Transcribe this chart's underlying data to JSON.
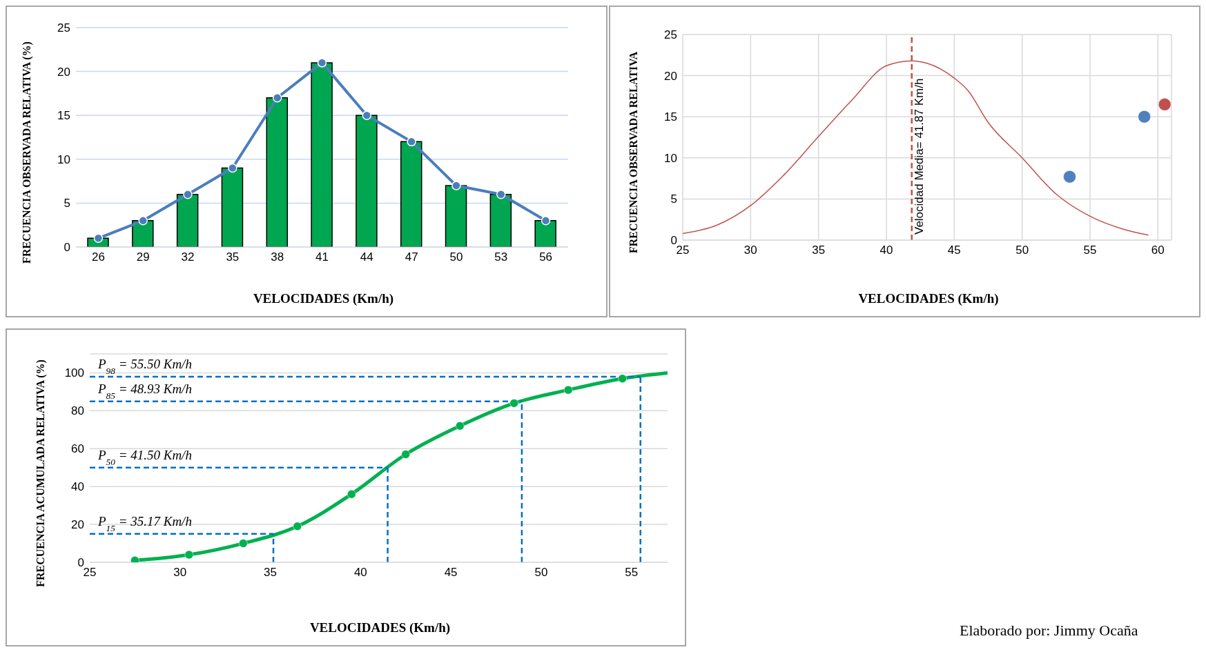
{
  "chart_data": [
    {
      "type": "bar",
      "xlabel": "VELOCIDADES (Km/h)",
      "ylabel": "FRECUENCIA OBSERVADA RELATIVA (%)",
      "categories": [
        "26",
        "29",
        "32",
        "35",
        "38",
        "41",
        "44",
        "47",
        "50",
        "53",
        "56"
      ],
      "series": [
        {
          "color": "#00a650",
          "values": [
            1,
            3,
            6,
            9,
            17,
            21,
            15,
            12,
            7,
            6,
            3
          ]
        },
        {
          "type": "line",
          "color": "#4a7ebb",
          "marker": "circle",
          "values": [
            1,
            3,
            6,
            9,
            17,
            21,
            15,
            12,
            7,
            6,
            3
          ]
        }
      ],
      "ylim": [
        0,
        25
      ],
      "yticks": [
        0,
        5,
        10,
        15,
        20,
        25
      ],
      "grid": "y"
    },
    {
      "type": "scatter",
      "xlabel": "VELOCIDADES (Km/h)",
      "ylabel": "FRECUENCIA OBSERVADA RELATIVA",
      "xlim": [
        25,
        61
      ],
      "xticks": [
        25,
        30,
        35,
        40,
        45,
        50,
        55,
        60
      ],
      "ylim": [
        0,
        25
      ],
      "yticks": [
        0,
        5,
        10,
        15,
        20,
        25
      ],
      "grid": true,
      "series": [
        {
          "type": "line",
          "color": "#c0504d",
          "marker": "none",
          "x": [
            25,
            27.5,
            30,
            32.5,
            35,
            37.5,
            40,
            41.87,
            43,
            45,
            46,
            47.5,
            50,
            52.5,
            55,
            57.5,
            59.3
          ],
          "values": [
            0.8,
            1.8,
            4.2,
            8,
            12.6,
            17.1,
            21.2,
            21.8,
            21.5,
            19.7,
            18.2,
            14.3,
            10,
            5.6,
            2.9,
            1.3,
            0.6
          ]
        },
        {
          "color": "#4f81bd",
          "marker": "circle",
          "x": [
            53.5,
            59
          ],
          "values": [
            7.7,
            15
          ]
        },
        {
          "color": "#c0504d",
          "marker": "circle",
          "x": [
            60.5
          ],
          "values": [
            16.5
          ]
        }
      ],
      "ref_lines": [
        {
          "axis": "x",
          "value": 41.87,
          "label": "Velocidad Media= 41.87 Km/h",
          "color": "#c0504d",
          "line_style": "dashed"
        }
      ]
    },
    {
      "type": "line",
      "xlabel": "VELOCIDADES (Km/h)",
      "ylabel": "FRECUENCIA ACUMULADA RELATIVA (%)",
      "xlim": [
        25,
        57
      ],
      "xticks": [
        25,
        30,
        35,
        40,
        45,
        50,
        55
      ],
      "ylim": [
        0,
        110
      ],
      "yticks": [
        0,
        20,
        40,
        60,
        80,
        100
      ],
      "grid": "y",
      "series": [
        {
          "type": "line",
          "color": "#00b050",
          "marker": "none",
          "x": [
            27.5,
            30.5,
            33.5,
            36.5,
            39.5,
            42.5,
            45.5,
            48.5,
            51.5,
            54.5,
            57
          ],
          "values": [
            1,
            4,
            10,
            19,
            36,
            57,
            72,
            84,
            91,
            97,
            100
          ]
        },
        {
          "type": "scatter",
          "color": "#00b050",
          "marker": "circle",
          "x": [
            27.5,
            30.5,
            33.5,
            36.5,
            39.5,
            42.5,
            45.5,
            48.5,
            51.5,
            54.5
          ],
          "values": [
            1,
            4,
            10,
            19,
            36,
            57,
            72,
            84,
            91,
            97
          ]
        }
      ],
      "ref_lines": [
        {
          "axis": "y",
          "value": 15,
          "label": "P$_{15}$ = 35.17 Km/h",
          "color": "#0070c0",
          "line_style": "dashed"
        },
        {
          "axis": "y",
          "value": 50,
          "label": "P$_{50}$ = 41.50 Km/h",
          "color": "#0070c0",
          "line_style": "dashed"
        },
        {
          "axis": "y",
          "value": 85,
          "label": "P$_{85}$ = 48.93 Km/h",
          "color": "#0070c0",
          "line_style": "dashed"
        },
        {
          "axis": "y",
          "value": 98,
          "label": "P$_{98}$ = 55.50 Km/h",
          "color": "#0070c0",
          "line_style": "dashed"
        },
        {
          "axis": "x",
          "value": 35.17,
          "color": "#0070c0",
          "line_style": "dashed"
        },
        {
          "axis": "x",
          "value": 41.5,
          "color": "#0070c0",
          "line_style": "dashed"
        },
        {
          "axis": "x",
          "value": 48.93,
          "color": "#0070c0",
          "line_style": "dashed"
        },
        {
          "axis": "x",
          "value": 55.5,
          "color": "#0070c0",
          "line_style": "dashed"
        }
      ],
      "annotations": [
        "Elaborado por: Jimmy Ocaña"
      ]
    }
  ]
}
